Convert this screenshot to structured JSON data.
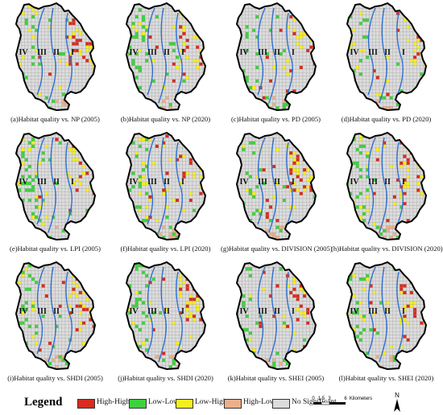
{
  "panels": [
    {
      "caption": "(a)Habitat quality vs. NP (2005)",
      "seed": 11,
      "bias": {
        "east": 0.35,
        "west": 0.08
      }
    },
    {
      "caption": "(b)Habitat quality vs. NP (2020)",
      "seed": 23,
      "bias": {
        "east": 0.25,
        "west": 0.2
      }
    },
    {
      "caption": "(c)Habitat quality vs. PD (2005)",
      "seed": 37,
      "bias": {
        "east": 0.25,
        "west": 0.12
      }
    },
    {
      "caption": "(d)Habitat quality vs. PD (2020)",
      "seed": 41,
      "bias": {
        "east": 0.22,
        "west": 0.1
      }
    },
    {
      "caption": "(e)Habitat quality vs. LPI (2005)",
      "seed": 53,
      "bias": {
        "east": 0.18,
        "west": 0.22
      }
    },
    {
      "caption": "(f)Habitat quality vs. LPI (2020)",
      "seed": 67,
      "bias": {
        "east": 0.18,
        "west": 0.2
      }
    },
    {
      "caption": "(g)Habitat quality vs. DIVISION (2005)",
      "seed": 71,
      "bias": {
        "east": 0.38,
        "west": 0.15
      }
    },
    {
      "caption": "(h)Habitat quality vs. DIVISION (2020)",
      "seed": 83,
      "bias": {
        "east": 0.3,
        "west": 0.22
      }
    },
    {
      "caption": "(i)Habitat quality vs. SHDI (2005)",
      "seed": 97,
      "bias": {
        "east": 0.32,
        "west": 0.14
      }
    },
    {
      "caption": "(j)Habitat quality vs. SHDI (2020)",
      "seed": 101,
      "bias": {
        "east": 0.3,
        "west": 0.22
      }
    },
    {
      "caption": "(k)Habitat quality vs. SHEI (2005)",
      "seed": 113,
      "bias": {
        "east": 0.3,
        "west": 0.14
      }
    },
    {
      "caption": "(l)Habitat quality vs. SHEI (2020)",
      "seed": 127,
      "bias": {
        "east": 0.3,
        "west": 0.24
      }
    }
  ],
  "zones": [
    "IV",
    "III",
    "II",
    "I"
  ],
  "legend": {
    "title": "Legend",
    "items": [
      {
        "label": "High-High",
        "color": "#d92b1f"
      },
      {
        "label": "Low-Low",
        "color": "#3dd13d"
      },
      {
        "label": "Low-High",
        "color": "#f5ef1d"
      },
      {
        "label": "High-Low",
        "color": "#eab08c"
      },
      {
        "label": "No Significant",
        "color": "#dcdcdc"
      }
    ]
  },
  "scale_bar": {
    "ticks": [
      "0",
      "1.5",
      "3",
      "6"
    ],
    "unit": "Kilometers"
  },
  "north_label": "N"
}
